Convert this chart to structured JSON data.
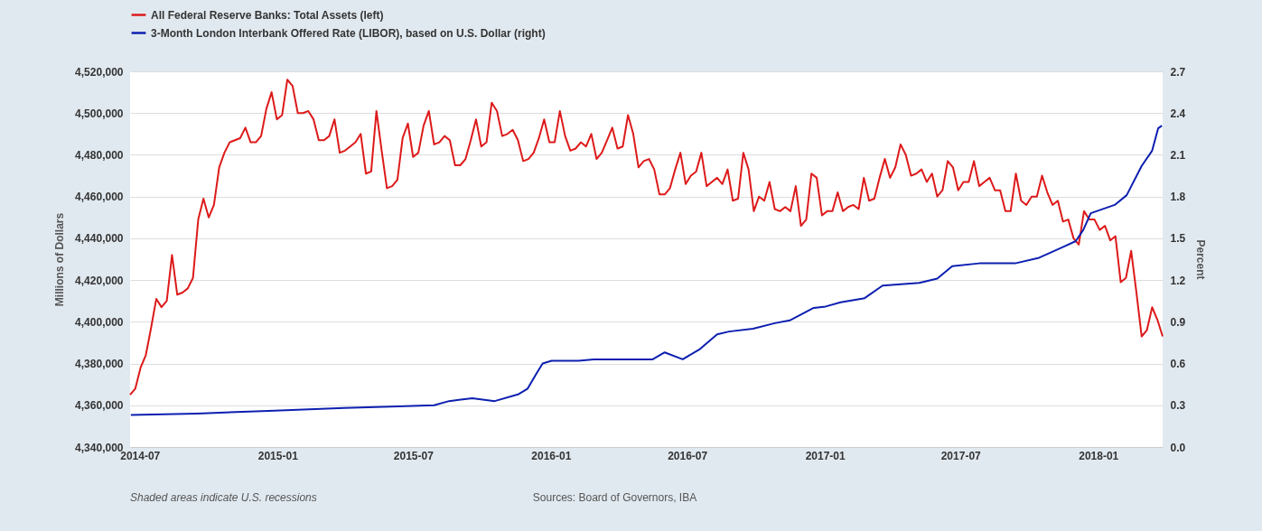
{
  "chart_data": {
    "type": "line",
    "xlim": [
      "2014-06-18",
      "2018-03-28"
    ],
    "xticks": [
      "2014-07",
      "2015-01",
      "2015-07",
      "2016-01",
      "2016-07",
      "2017-01",
      "2017-07",
      "2018-01"
    ],
    "ylim": [
      4340000,
      4520000
    ],
    "yticks": [
      {
        "value": 4340000,
        "label": "4,340,000"
      },
      {
        "value": 4360000,
        "label": "4,360,000"
      },
      {
        "value": 4380000,
        "label": "4,380,000"
      },
      {
        "value": 4400000,
        "label": "4,400,000"
      },
      {
        "value": 4420000,
        "label": "4,420,000"
      },
      {
        "value": 4440000,
        "label": "4,440,000"
      },
      {
        "value": 4460000,
        "label": "4,460,000"
      },
      {
        "value": 4480000,
        "label": "4,480,000"
      },
      {
        "value": 4500000,
        "label": "4,500,000"
      },
      {
        "value": 4520000,
        "label": "4,520,000"
      }
    ],
    "y2lim": [
      0,
      2.7
    ],
    "y2ticks": [
      {
        "value": 0,
        "label": "0.0"
      },
      {
        "value": 0.3,
        "label": "0.3"
      },
      {
        "value": 0.6,
        "label": "0.6"
      },
      {
        "value": 0.9,
        "label": "0.9"
      },
      {
        "value": 1.2,
        "label": "1.2"
      },
      {
        "value": 1.5,
        "label": "1.5"
      },
      {
        "value": 1.8,
        "label": "1.8"
      },
      {
        "value": 2.1,
        "label": "2.1"
      },
      {
        "value": 2.4,
        "label": "2.4"
      },
      {
        "value": 2.7,
        "label": "2.7"
      }
    ],
    "ylabel": "Millions of Dollars",
    "y2label": "Percent",
    "grid": "y",
    "legend": "top left",
    "annotations": [
      "Shaded areas indicate U.S. recessions",
      "Sources: Board of Governors, IBA"
    ],
    "series": [
      {
        "name": "All Federal Reserve Banks: Total Assets (left)",
        "color": "#dd1a1a",
        "x": [
          "2014-06-18",
          "2014-06-25",
          "2014-07-02",
          "2014-07-09",
          "2014-07-16",
          "2014-07-23",
          "2014-07-30",
          "2014-08-06",
          "2014-08-13",
          "2014-08-20",
          "2014-08-27",
          "2014-09-03",
          "2014-09-10",
          "2014-09-17",
          "2014-09-24",
          "2014-10-01",
          "2014-10-08",
          "2014-10-15",
          "2014-10-22",
          "2014-10-29",
          "2014-11-05",
          "2014-11-12",
          "2014-11-19",
          "2014-11-26",
          "2014-12-03",
          "2014-12-10",
          "2014-12-17",
          "2014-12-24",
          "2014-12-31",
          "2015-01-07",
          "2015-01-14",
          "2015-01-21",
          "2015-01-28",
          "2015-02-04",
          "2015-02-11",
          "2015-02-18",
          "2015-02-25",
          "2015-03-04",
          "2015-03-11",
          "2015-03-18",
          "2015-03-25",
          "2015-04-01",
          "2015-04-08",
          "2015-04-15",
          "2015-04-22",
          "2015-04-29",
          "2015-05-06",
          "2015-05-13",
          "2015-05-20",
          "2015-05-27",
          "2015-06-03",
          "2015-06-10",
          "2015-06-17",
          "2015-06-24",
          "2015-07-01",
          "2015-07-08",
          "2015-07-15",
          "2015-07-22",
          "2015-07-29",
          "2015-08-05",
          "2015-08-12",
          "2015-08-19",
          "2015-08-26",
          "2015-09-02",
          "2015-09-09",
          "2015-09-16",
          "2015-09-23",
          "2015-09-30",
          "2015-10-07",
          "2015-10-14",
          "2015-10-21",
          "2015-10-28",
          "2015-11-04",
          "2015-11-11",
          "2015-11-18",
          "2015-11-25",
          "2015-12-02",
          "2015-12-09",
          "2015-12-16",
          "2015-12-23",
          "2015-12-30",
          "2016-01-06",
          "2016-01-13",
          "2016-01-20",
          "2016-01-27",
          "2016-02-03",
          "2016-02-10",
          "2016-02-17",
          "2016-02-24",
          "2016-03-02",
          "2016-03-09",
          "2016-03-16",
          "2016-03-23",
          "2016-03-30",
          "2016-04-06",
          "2016-04-13",
          "2016-04-20",
          "2016-04-27",
          "2016-05-04",
          "2016-05-11",
          "2016-05-18",
          "2016-05-25",
          "2016-06-01",
          "2016-06-08",
          "2016-06-15",
          "2016-06-22",
          "2016-06-29",
          "2016-07-06",
          "2016-07-13",
          "2016-07-20",
          "2016-07-27",
          "2016-08-03",
          "2016-08-10",
          "2016-08-17",
          "2016-08-24",
          "2016-08-31",
          "2016-09-07",
          "2016-09-14",
          "2016-09-21",
          "2016-09-28",
          "2016-10-05",
          "2016-10-12",
          "2016-10-19",
          "2016-10-26",
          "2016-11-02",
          "2016-11-09",
          "2016-11-16",
          "2016-11-23",
          "2016-11-30",
          "2016-12-07",
          "2016-12-14",
          "2016-12-21",
          "2016-12-28",
          "2017-01-04",
          "2017-01-11",
          "2017-01-18",
          "2017-01-25",
          "2017-02-01",
          "2017-02-08",
          "2017-02-15",
          "2017-02-22",
          "2017-03-01",
          "2017-03-08",
          "2017-03-15",
          "2017-03-22",
          "2017-03-29",
          "2017-04-05",
          "2017-04-12",
          "2017-04-19",
          "2017-04-26",
          "2017-05-03",
          "2017-05-10",
          "2017-05-17",
          "2017-05-24",
          "2017-05-31",
          "2017-06-07",
          "2017-06-14",
          "2017-06-21",
          "2017-06-28",
          "2017-07-05",
          "2017-07-12",
          "2017-07-19",
          "2017-07-26",
          "2017-08-02",
          "2017-08-09",
          "2017-08-16",
          "2017-08-23",
          "2017-08-30",
          "2017-09-06",
          "2017-09-13",
          "2017-09-20",
          "2017-09-27",
          "2017-10-04",
          "2017-10-11",
          "2017-10-18",
          "2017-10-25",
          "2017-11-01",
          "2017-11-08",
          "2017-11-15",
          "2017-11-22",
          "2017-11-29",
          "2017-12-06",
          "2017-12-13",
          "2017-12-20",
          "2017-12-27",
          "2018-01-03",
          "2018-01-10",
          "2018-01-17",
          "2018-01-24",
          "2018-01-31",
          "2018-02-07",
          "2018-02-14",
          "2018-02-21",
          "2018-02-28",
          "2018-03-07",
          "2018-03-14",
          "2018-03-21",
          "2018-03-28"
        ],
        "values": [
          4365000,
          4368000,
          4378000,
          4384000,
          4397000,
          4411000,
          4407000,
          4410000,
          4432000,
          4413000,
          4414000,
          4416000,
          4421000,
          4449000,
          4459000,
          4450000,
          4456000,
          4474000,
          4481000,
          4486000,
          4487000,
          4488000,
          4493000,
          4486000,
          4486000,
          4489000,
          4502000,
          4510000,
          4497000,
          4499000,
          4516000,
          4513000,
          4500000,
          4500000,
          4501000,
          4497000,
          4487000,
          4487000,
          4489000,
          4497000,
          4481000,
          4482000,
          4484000,
          4486000,
          4490000,
          4471000,
          4472000,
          4501000,
          4482000,
          4464000,
          4465000,
          4468000,
          4488000,
          4495000,
          4479000,
          4481000,
          4494000,
          4501000,
          4485000,
          4486000,
          4489000,
          4487000,
          4475000,
          4475000,
          4478000,
          4487000,
          4497000,
          4484000,
          4486000,
          4505000,
          4501000,
          4489000,
          4490000,
          4492000,
          4487000,
          4477000,
          4478000,
          4481000,
          4488000,
          4497000,
          4486000,
          4486000,
          4501000,
          4489000,
          4482000,
          4483000,
          4486000,
          4484000,
          4490000,
          4478000,
          4481000,
          4487000,
          4493000,
          4483000,
          4484000,
          4499000,
          4490000,
          4474000,
          4477000,
          4478000,
          4473000,
          4461000,
          4461000,
          4464000,
          4473000,
          4481000,
          4466000,
          4470000,
          4472000,
          4481000,
          4465000,
          4467000,
          4469000,
          4466000,
          4473000,
          4458000,
          4459000,
          4481000,
          4473000,
          4453000,
          4460000,
          4458000,
          4467000,
          4454000,
          4453000,
          4455000,
          4453000,
          4465000,
          4446000,
          4449000,
          4471000,
          4469000,
          4451000,
          4453000,
          4453000,
          4462000,
          4453000,
          4455000,
          4456000,
          4454000,
          4469000,
          4458000,
          4459000,
          4469000,
          4478000,
          4469000,
          4474000,
          4485000,
          4480000,
          4470000,
          4471000,
          4473000,
          4467000,
          4471000,
          4460000,
          4463000,
          4477000,
          4474000,
          4463000,
          4467000,
          4467000,
          4477000,
          4465000,
          4467000,
          4469000,
          4463000,
          4463000,
          4453000,
          4453000,
          4471000,
          4458000,
          4456000,
          4460000,
          4460000,
          4470000,
          4462000,
          4456000,
          4458000,
          4448000,
          4449000,
          4440000,
          4437000,
          4453000,
          4449000,
          4449000,
          4444000,
          4446000,
          4439000,
          4441000,
          4419000,
          4421000,
          4434000,
          4414000,
          4393000,
          4396000,
          4407000,
          4401000,
          4393000
        ]
      },
      {
        "name": "3-Month London Interbank Offered Rate (LIBOR), based on U.S. Dollar (right)",
        "color": "#0d1fb0",
        "axis": "y2",
        "x": [
          "2014-06-19",
          "2014-09-15",
          "2014-12-20",
          "2015-03-31",
          "2015-06-01",
          "2015-07-29",
          "2015-08-18",
          "2015-09-18",
          "2015-10-18",
          "2015-11-19",
          "2015-12-01",
          "2015-12-13",
          "2015-12-21",
          "2016-01-02",
          "2016-02-07",
          "2016-02-27",
          "2016-04-28",
          "2016-05-16",
          "2016-06-01",
          "2016-06-25",
          "2016-07-17",
          "2016-08-10",
          "2016-08-26",
          "2016-09-27",
          "2016-10-26",
          "2016-11-15",
          "2016-12-17",
          "2017-01-02",
          "2017-01-22",
          "2017-02-23",
          "2017-03-19",
          "2017-05-07",
          "2017-05-31",
          "2017-06-20",
          "2017-07-26",
          "2017-09-12",
          "2017-10-14",
          "2017-11-16",
          "2017-12-02",
          "2017-12-12",
          "2017-12-22",
          "2018-01-23",
          "2018-02-08",
          "2018-02-28",
          "2018-03-14",
          "2018-03-22",
          "2018-03-27"
        ],
        "values": [
          0.23,
          0.24,
          0.26,
          0.28,
          0.29,
          0.3,
          0.33,
          0.35,
          0.33,
          0.38,
          0.42,
          0.53,
          0.6,
          0.62,
          0.62,
          0.63,
          0.63,
          0.63,
          0.68,
          0.63,
          0.7,
          0.81,
          0.83,
          0.85,
          0.89,
          0.91,
          1.0,
          1.01,
          1.04,
          1.07,
          1.16,
          1.18,
          1.21,
          1.3,
          1.32,
          1.32,
          1.36,
          1.44,
          1.48,
          1.56,
          1.68,
          1.74,
          1.81,
          2.02,
          2.13,
          2.29,
          2.31
        ]
      }
    ]
  }
}
